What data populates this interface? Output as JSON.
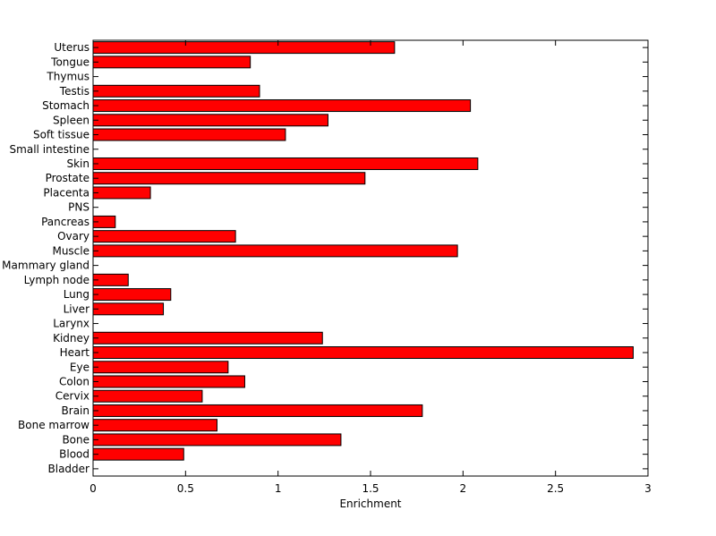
{
  "chart_data": {
    "type": "bar",
    "orientation": "horizontal",
    "title": "",
    "xlabel": "Enrichment",
    "ylabel": "",
    "xlim": [
      0,
      3
    ],
    "x_ticks": [
      "0",
      "0.5",
      "1",
      "1.5",
      "2",
      "2.5",
      "3"
    ],
    "grid": false,
    "bar_color": "#ff0000",
    "bar_edge_color": "#000000",
    "categories": [
      "Bladder",
      "Blood",
      "Bone",
      "Bone marrow",
      "Brain",
      "Cervix",
      "Colon",
      "Eye",
      "Heart",
      "Kidney",
      "Larynx",
      "Liver",
      "Lung",
      "Lymph node",
      "Mammary gland",
      "Muscle",
      "Ovary",
      "Pancreas",
      "PNS",
      "Placenta",
      "Prostate",
      "Skin",
      "Small intestine",
      "Soft tissue",
      "Spleen",
      "Stomach",
      "Testis",
      "Thymus",
      "Tongue",
      "Uterus"
    ],
    "values": [
      0,
      0.49,
      1.34,
      0.67,
      1.78,
      0.59,
      0.82,
      0.73,
      2.92,
      1.24,
      0,
      0.38,
      0.42,
      0.19,
      0,
      1.97,
      0.77,
      0.12,
      0,
      0.31,
      1.47,
      2.08,
      0,
      1.04,
      1.27,
      2.04,
      0.9,
      0,
      0.85,
      1.63
    ]
  }
}
